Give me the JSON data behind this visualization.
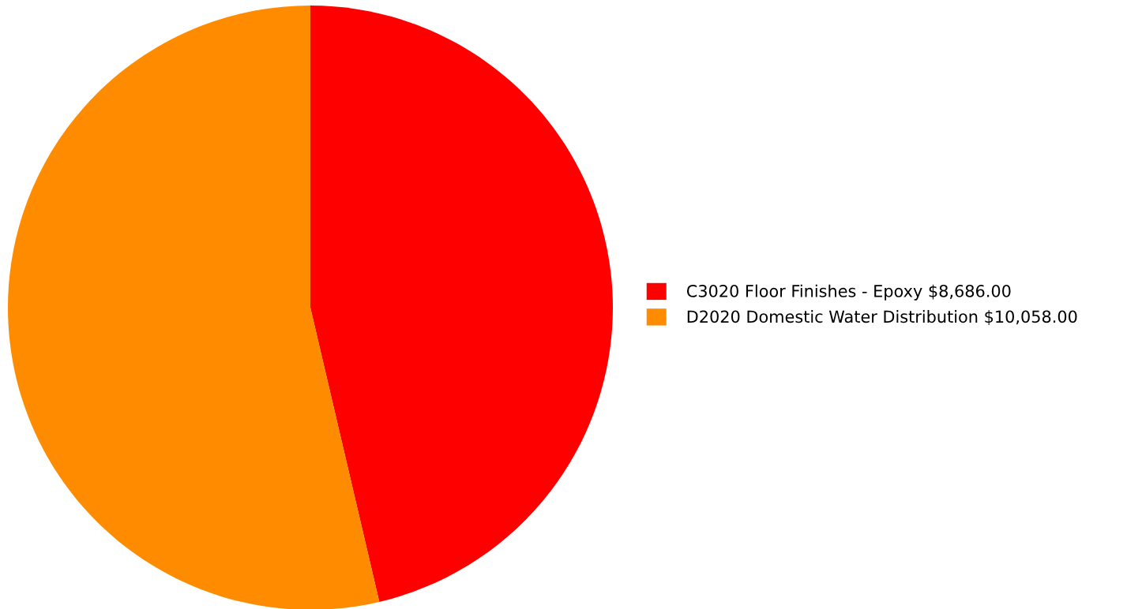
{
  "chart_data": {
    "type": "pie",
    "categories": [
      "C3020 Floor Finishes - Epoxy $8,686.00",
      "D2020 Domestic Water Distribution $10,058.00"
    ],
    "values": [
      8686,
      10058
    ],
    "colors": [
      "#ff0000",
      "#ff8c00"
    ],
    "legend": "right"
  }
}
